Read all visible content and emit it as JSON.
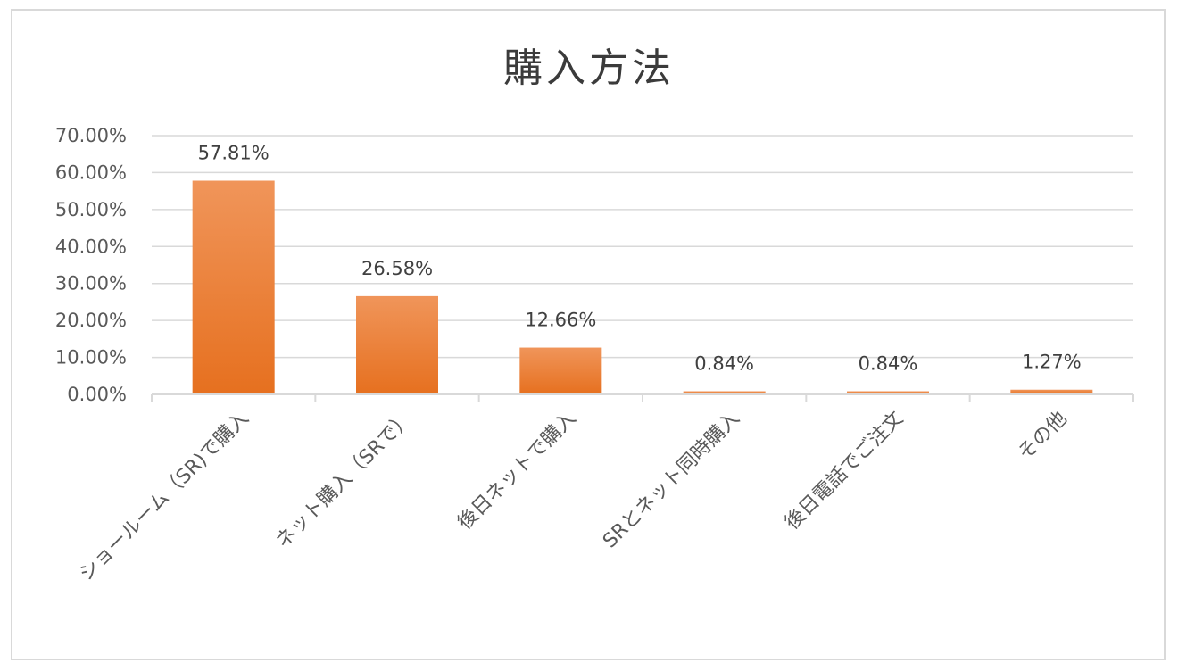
{
  "chart_data": {
    "type": "bar",
    "title": "購入方法",
    "categories": [
      "ショールーム（SR)で購入",
      "ネット購入（SRで）",
      "後日ネットで購入",
      "SRとネット同時購入",
      "後日電話でご注文",
      "その他"
    ],
    "values": [
      57.81,
      26.58,
      12.66,
      0.84,
      0.84,
      1.27
    ],
    "data_labels": [
      "57.81%",
      "26.58%",
      "12.66%",
      "0.84%",
      "0.84%",
      "1.27%"
    ],
    "y_ticks": [
      "0.00%",
      "10.00%",
      "20.00%",
      "30.00%",
      "40.00%",
      "50.00%",
      "60.00%",
      "70.00%"
    ],
    "ylim": [
      0,
      70
    ],
    "grid": true,
    "legend": "none",
    "colors": {
      "bar_top": "#f0955a",
      "bar_bottom": "#e6701f",
      "grid": "#d9d9d9"
    }
  }
}
